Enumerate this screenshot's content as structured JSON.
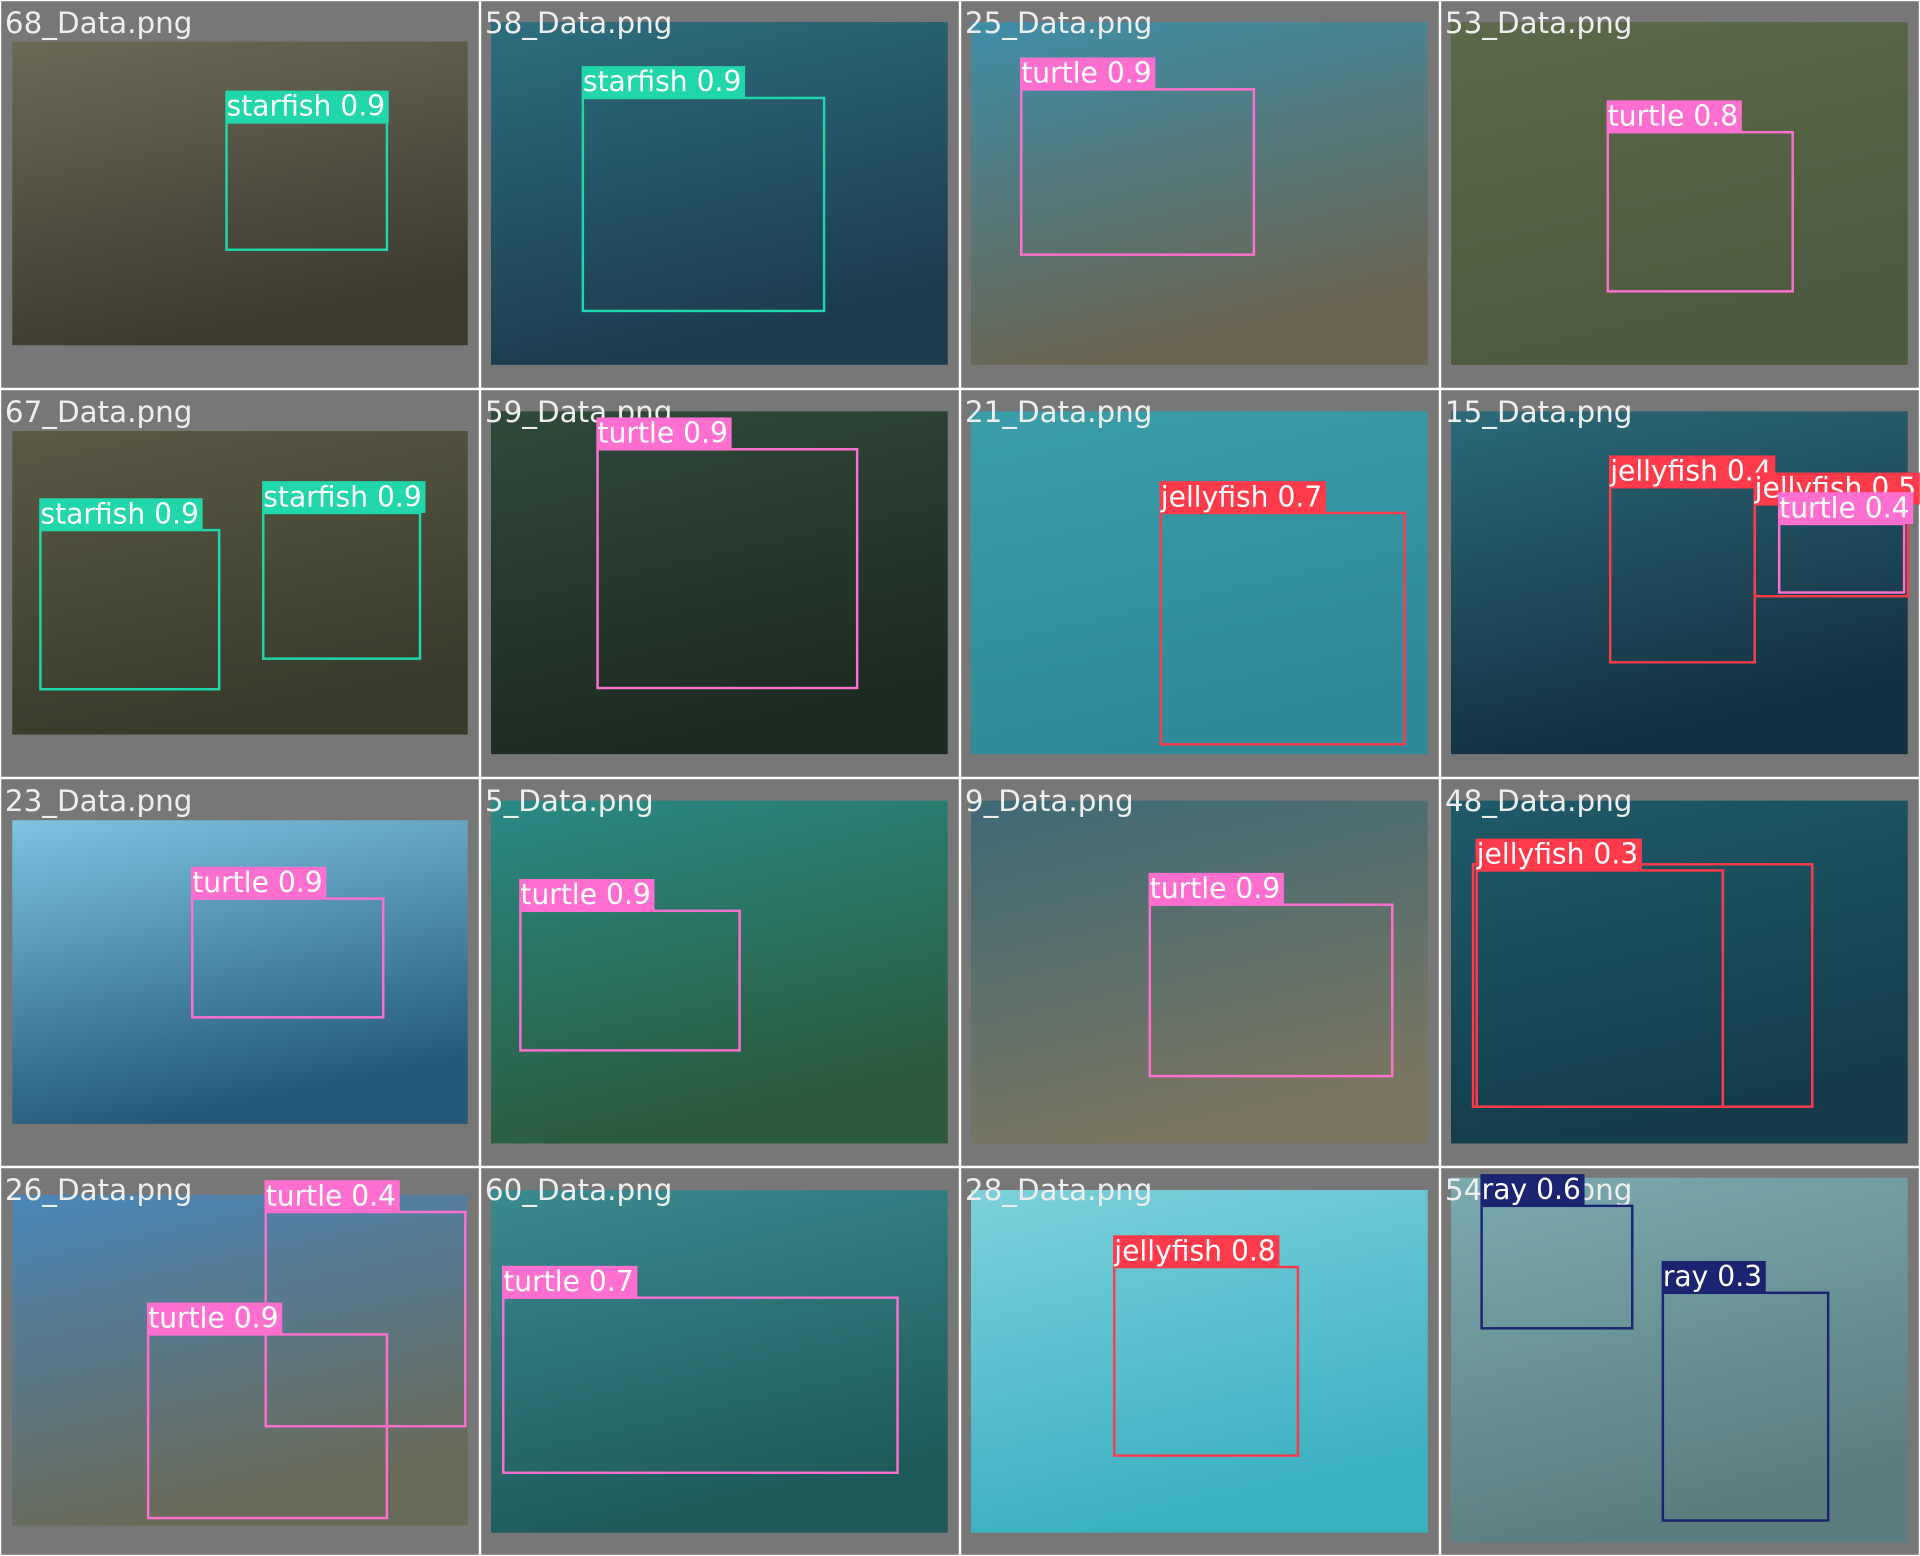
{
  "tiles": [
    {
      "file": "68_Data.png",
      "detections": [
        "starfish 0.9"
      ]
    },
    {
      "file": "58_Data.png",
      "detections": [
        "starfish 0.9"
      ]
    },
    {
      "file": "25_Data.png",
      "detections": [
        "turtle 0.9"
      ]
    },
    {
      "file": "53_Data.png",
      "detections": [
        "turtle 0.8"
      ]
    },
    {
      "file": "67_Data.png",
      "detections": [
        "starfish 0.9",
        "starfish 0.9"
      ]
    },
    {
      "file": "59_Data.png",
      "detections": [
        "turtle 0.9"
      ]
    },
    {
      "file": "21_Data.png",
      "detections": [
        "jellyfish 0.7"
      ]
    },
    {
      "file": "15_Data.png",
      "detections": [
        "jellyfish 0.4",
        "jellyfish 0.5",
        "turtle 0.4"
      ]
    },
    {
      "file": "23_Data.png",
      "detections": [
        "turtle 0.9"
      ]
    },
    {
      "file": "5_Data.png",
      "detections": [
        "turtle 0.9"
      ]
    },
    {
      "file": "9_Data.png",
      "detections": [
        "turtle 0.9"
      ]
    },
    {
      "file": "48_Data.png",
      "detections": [
        "jellyfish 0.3"
      ]
    },
    {
      "file": "26_Data.png",
      "detections": [
        "turtle 0.4",
        "turtle 0.9"
      ]
    },
    {
      "file": "60_Data.png",
      "detections": [
        "turtle 0.7"
      ]
    },
    {
      "file": "28_Data.png",
      "detections": [
        "jellyfish 0.8"
      ]
    },
    {
      "file": "54_Data.png",
      "detections": [
        "ray 0.6",
        "ray 0.3"
      ]
    }
  ]
}
